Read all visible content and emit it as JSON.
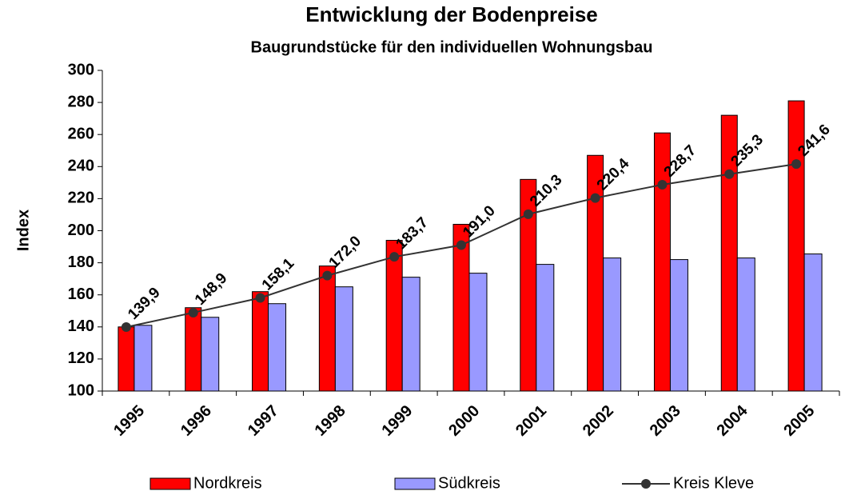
{
  "chart_data": {
    "type": "bar-line",
    "title": "Entwicklung der Bodenpreise",
    "subtitle": "Baugrundstücke für den individuellen Wohnungsbau",
    "y_label": "Index",
    "categories": [
      "1995",
      "1996",
      "1997",
      "1998",
      "1999",
      "2000",
      "2001",
      "2002",
      "2003",
      "2004",
      "2005"
    ],
    "series": [
      {
        "name": "Nordkreis",
        "type": "bar",
        "color": "#ff0000",
        "values": [
          140,
          152,
          162,
          178,
          194,
          204,
          232,
          247,
          261,
          272,
          281
        ]
      },
      {
        "name": "Südkreis",
        "type": "bar",
        "color": "#9999ff",
        "values": [
          141,
          146,
          154.5,
          165,
          171,
          173.5,
          179,
          183,
          182,
          183,
          185.5
        ]
      },
      {
        "name": "Kreis Kleve",
        "type": "line",
        "color": "#333333",
        "values": [
          139.9,
          148.9,
          158.1,
          172.0,
          183.7,
          191.0,
          210.3,
          220.4,
          228.7,
          235.3,
          241.6
        ],
        "value_labels": [
          "139,9",
          "148,9",
          "158,1",
          "172,0",
          "183,7",
          "191,0",
          "210,3",
          "220,4",
          "228,7",
          "235,3",
          "241,6"
        ]
      }
    ],
    "ylim": [
      100,
      300
    ],
    "yticks": [
      100,
      120,
      140,
      160,
      180,
      200,
      220,
      240,
      260,
      280,
      300
    ]
  }
}
